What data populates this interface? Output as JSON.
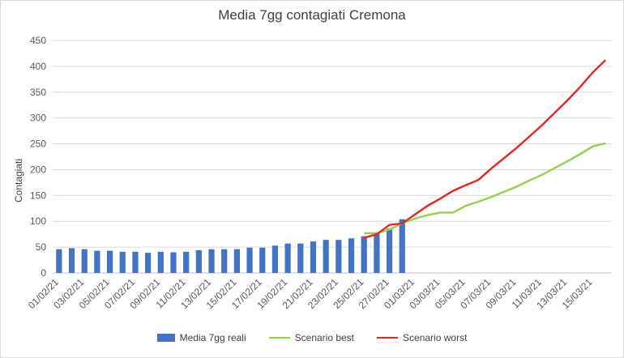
{
  "colors": {
    "bars": "#4472c4",
    "best": "#92d050",
    "worst": "#e0281e",
    "grid": "#d9d9d9",
    "text": "#595959"
  },
  "chart_data": {
    "type": "bar",
    "title": "Media 7gg contagiati Cremona",
    "xlabel": "",
    "ylabel": "Contagiati",
    "ylim": [
      0,
      450
    ],
    "yticks": [
      0,
      50,
      100,
      150,
      200,
      250,
      300,
      350,
      400,
      450
    ],
    "grid": true,
    "legend_position": "bottom",
    "categories": [
      "01/02/21",
      "02/02/21",
      "03/02/21",
      "04/02/21",
      "05/02/21",
      "06/02/21",
      "07/02/21",
      "08/02/21",
      "09/02/21",
      "10/02/21",
      "11/02/21",
      "12/02/21",
      "13/02/21",
      "14/02/21",
      "15/02/21",
      "16/02/21",
      "17/02/21",
      "18/02/21",
      "19/02/21",
      "20/02/21",
      "21/02/21",
      "22/02/21",
      "23/02/21",
      "24/02/21",
      "25/02/21",
      "26/02/21",
      "27/02/21",
      "28/02/21",
      "01/03/21",
      "02/03/21",
      "03/03/21",
      "04/03/21",
      "05/03/21",
      "06/03/21",
      "07/03/21",
      "08/03/21",
      "09/03/21",
      "10/03/21",
      "11/03/21",
      "12/03/21",
      "13/03/21",
      "14/03/21",
      "15/03/21",
      "16/03/21"
    ],
    "tick_labels": [
      "01/02/21",
      "03/02/21",
      "05/02/21",
      "07/02/21",
      "09/02/21",
      "11/02/21",
      "13/02/21",
      "15/02/21",
      "17/02/21",
      "19/02/21",
      "21/02/21",
      "23/02/21",
      "25/02/21",
      "27/02/21",
      "01/03/21",
      "03/03/21",
      "05/03/21",
      "07/03/21",
      "09/03/21",
      "11/03/21",
      "13/03/21",
      "15/03/21"
    ],
    "series": [
      {
        "name": "Media 7gg reali",
        "type": "bar",
        "values": [
          46,
          48,
          46,
          43,
          43,
          41,
          41,
          39,
          41,
          40,
          41,
          44,
          46,
          46,
          46,
          49,
          49,
          53,
          57,
          57,
          61,
          64,
          64,
          67,
          71,
          76,
          86,
          104,
          null,
          null,
          null,
          null,
          null,
          null,
          null,
          null,
          null,
          null,
          null,
          null,
          null,
          null,
          null,
          null
        ]
      },
      {
        "name": "Scenario best",
        "type": "line",
        "values": [
          null,
          null,
          null,
          null,
          null,
          null,
          null,
          null,
          null,
          null,
          null,
          null,
          null,
          null,
          null,
          null,
          null,
          null,
          null,
          null,
          null,
          null,
          null,
          null,
          77,
          77,
          84,
          96,
          105,
          112,
          117,
          117,
          130,
          138,
          147,
          157,
          167,
          179,
          190,
          203,
          216,
          230,
          245,
          251
        ]
      },
      {
        "name": "Scenario worst",
        "type": "line",
        "values": [
          null,
          null,
          null,
          null,
          null,
          null,
          null,
          null,
          null,
          null,
          null,
          null,
          null,
          null,
          null,
          null,
          null,
          null,
          null,
          null,
          null,
          null,
          null,
          null,
          68,
          75,
          93,
          96,
          113,
          130,
          144,
          159,
          170,
          180,
          202,
          222,
          242,
          264,
          286,
          310,
          334,
          360,
          388,
          412
        ]
      }
    ]
  }
}
